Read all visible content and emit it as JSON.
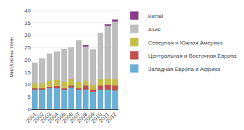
{
  "chart_data": {
    "type": "bar",
    "stacked": true,
    "ylabel": "Миллионы тонн",
    "categories": [
      "2001",
      "2002",
      "2003",
      "2004",
      "2005",
      "2006",
      "2007",
      "2008",
      "2009",
      "2010",
      "2011",
      "2012"
    ],
    "series": [
      {
        "name": "Западная Европа и Африка",
        "color": "#6baed6",
        "values": [
          8.0,
          8.0,
          8.5,
          8.5,
          8.0,
          9.0,
          8.0,
          8.0,
          7.0,
          8.0,
          8.0,
          7.5
        ]
      },
      {
        "name": "Центральная и Восточная Европа",
        "color": "#c0504d",
        "values": [
          0.5,
          0.5,
          0.5,
          0.8,
          0.5,
          0.5,
          0.5,
          1.5,
          0.8,
          1.5,
          2.0,
          2.0
        ]
      },
      {
        "name": "Северная и Южная Америка",
        "color": "#c4bd48",
        "values": [
          2.0,
          2.0,
          2.5,
          2.5,
          2.5,
          2.5,
          2.5,
          2.0,
          2.0,
          2.5,
          2.5,
          2.5
        ]
      },
      {
        "name": "Азия",
        "color": "#bdbdbd",
        "values": [
          8.5,
          10.0,
          11.0,
          11.5,
          13.5,
          13.0,
          17.0,
          14.0,
          14.5,
          19.0,
          21.5,
          23.5
        ]
      },
      {
        "name": "Китай",
        "color": "#8B3A8B",
        "values": [
          0.0,
          0.0,
          0.0,
          0.0,
          0.0,
          0.0,
          0.0,
          0.5,
          0.0,
          0.0,
          0.5,
          1.0
        ]
      }
    ],
    "ylim": [
      0,
      42
    ],
    "yticks": [
      0,
      5,
      10,
      15,
      20,
      25,
      30,
      35,
      40
    ],
    "grid": true,
    "legend": "right"
  }
}
